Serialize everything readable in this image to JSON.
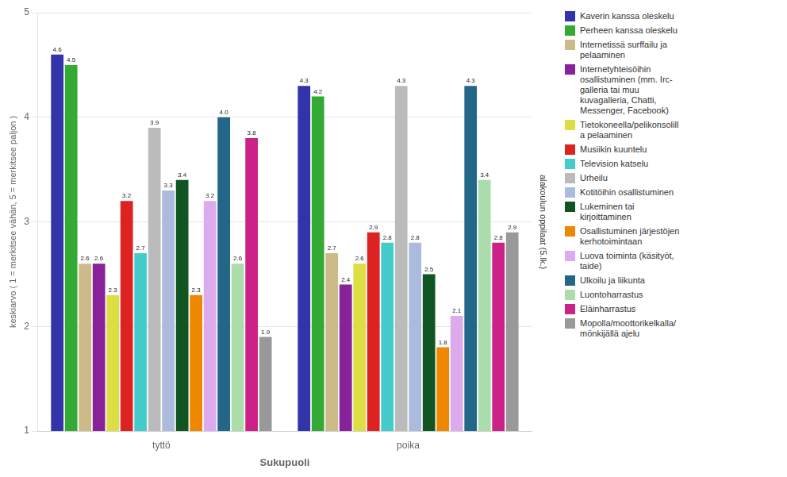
{
  "chart_data": {
    "type": "bar",
    "categories": [
      "tyttö",
      "poika"
    ],
    "series": [
      {
        "name": "Kaverin kanssa oleskelu",
        "color": "#3333aa",
        "values": [
          4.6,
          4.3
        ]
      },
      {
        "name": "Perheen kanssa oleskelu",
        "color": "#33aa33",
        "values": [
          4.5,
          4.2
        ]
      },
      {
        "name": "Internetissä surffailu ja\npelaaminen",
        "color": "#ccbb88",
        "values": [
          2.6,
          2.7
        ]
      },
      {
        "name": "Internetyhteisöihin\nosallistuminen (mm. Irc-\ngalleria tai muu\nkuvagalleria, Chatti,\nMessenger, Facebook)",
        "color": "#882299",
        "values": [
          2.6,
          2.4
        ]
      },
      {
        "name": "Tietokoneella/pelikonsolill\na pelaaminen",
        "color": "#dddd44",
        "values": [
          2.3,
          2.6
        ]
      },
      {
        "name": "Musiikin kuuntelu",
        "color": "#dd2222",
        "values": [
          3.2,
          2.9
        ]
      },
      {
        "name": "Television katselu",
        "color": "#44cccc",
        "values": [
          2.7,
          2.8
        ]
      },
      {
        "name": "Urheilu",
        "color": "#bbbbbb",
        "values": [
          3.9,
          4.3
        ]
      },
      {
        "name": "Kotitöihin osallistuminen",
        "color": "#aabbdd",
        "values": [
          3.3,
          2.8
        ]
      },
      {
        "name": "Lukeminen tai\nkirjoittaminen",
        "color": "#115522",
        "values": [
          3.4,
          2.5
        ]
      },
      {
        "name": "Osallistuminen järjestöjen\nkerhotoimintaan",
        "color": "#ee8800",
        "values": [
          2.3,
          1.8
        ]
      },
      {
        "name": "Luova toiminta (käsityöt,\ntaide)",
        "color": "#ddaaee",
        "values": [
          3.2,
          2.1
        ]
      },
      {
        "name": "Ulkoilu ja liikunta",
        "color": "#226688",
        "values": [
          4.0,
          4.3
        ],
        "value_labels": [
          "4.0",
          "4.3"
        ]
      },
      {
        "name": "Luontoharrastus",
        "color": "#aaddaa",
        "values": [
          2.6,
          3.4
        ]
      },
      {
        "name": "Eläinharrastus",
        "color": "#cc2288",
        "values": [
          3.8,
          2.8
        ]
      },
      {
        "name": "Mopolla/moottorikelkalla/\nmönkijällä ajelu",
        "color": "#999999",
        "values": [
          1.9,
          2.9
        ]
      }
    ],
    "xlabel": "Sukupuoli",
    "ylabel": "keskiarvo ( 1 = merkitsee vähän, 5 = merkitsee paljon )",
    "annotations": [
      "alakoulun oppilaat (5.lk.)"
    ],
    "ylim": [
      1,
      5
    ],
    "yticks": [
      1,
      2,
      3,
      4,
      5
    ],
    "grid": "y",
    "legend": "right",
    "data_labels": true
  }
}
